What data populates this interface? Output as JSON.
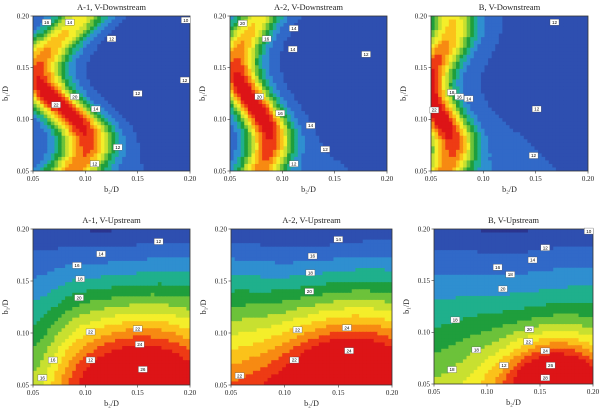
{
  "chart_data": [
    {
      "type": "heatmap",
      "title": "A-1, V-Downstream",
      "xlabel": "b₂/D",
      "ylabel": "b₁/D",
      "xlim": [
        0.05,
        0.2
      ],
      "ylim": [
        0.05,
        0.2
      ],
      "xticks": [
        "0.05",
        "0.10",
        "0.15",
        "0.20"
      ],
      "yticks": [
        "0.05",
        "0.10",
        "0.15",
        "0.20"
      ],
      "model": {
        "base": 0.12,
        "ridge_amp": 0.86,
        "ridge_width": 0.018,
        "ridge_x0": 0.078,
        "ridge_wave": [
          0.024,
          0.14,
          0.035
        ],
        "bottom_boost": 0.12
      },
      "contour_labels": [
        {
          "text": "16",
          "x": 0.063,
          "y": 0.194
        },
        {
          "text": "14",
          "x": 0.085,
          "y": 0.194
        },
        {
          "text": "12",
          "x": 0.125,
          "y": 0.178
        },
        {
          "text": "10",
          "x": 0.196,
          "y": 0.196
        },
        {
          "text": "12",
          "x": 0.195,
          "y": 0.138
        },
        {
          "text": "22",
          "x": 0.072,
          "y": 0.114
        },
        {
          "text": "20",
          "x": 0.09,
          "y": 0.122
        },
        {
          "text": "14",
          "x": 0.11,
          "y": 0.11
        },
        {
          "text": "12",
          "x": 0.15,
          "y": 0.125
        },
        {
          "text": "12",
          "x": 0.131,
          "y": 0.073
        },
        {
          "text": "12",
          "x": 0.109,
          "y": 0.057
        }
      ]
    },
    {
      "type": "heatmap",
      "title": "A-2, V-Downstream",
      "xlabel": "b₂/D",
      "ylabel": "b₁/D",
      "xlim": [
        0.05,
        0.2
      ],
      "ylim": [
        0.05,
        0.2
      ],
      "xticks": [
        "0.05",
        "0.10",
        "0.15",
        "0.20"
      ],
      "yticks": [
        "0.05",
        "0.10",
        "0.15",
        "0.20"
      ],
      "model": {
        "base": 0.13,
        "ridge_amp": 0.88,
        "ridge_width": 0.015,
        "ridge_x0": 0.072,
        "ridge_wave": [
          0.016,
          0.15,
          0.03
        ],
        "bottom_boost": 0.1
      },
      "contour_labels": [
        {
          "text": "20",
          "x": 0.062,
          "y": 0.193
        },
        {
          "text": "14",
          "x": 0.111,
          "y": 0.188
        },
        {
          "text": "16",
          "x": 0.085,
          "y": 0.178
        },
        {
          "text": "14",
          "x": 0.11,
          "y": 0.168
        },
        {
          "text": "12",
          "x": 0.18,
          "y": 0.163
        },
        {
          "text": "20",
          "x": 0.078,
          "y": 0.122
        },
        {
          "text": "16",
          "x": 0.098,
          "y": 0.106
        },
        {
          "text": "14",
          "x": 0.127,
          "y": 0.094
        },
        {
          "text": "12",
          "x": 0.141,
          "y": 0.071
        },
        {
          "text": "12",
          "x": 0.111,
          "y": 0.057
        }
      ]
    },
    {
      "type": "heatmap",
      "title": "B, V-Downstream",
      "xlabel": "b₂/D",
      "ylabel": "b₁/D",
      "xlim": [
        0.05,
        0.2
      ],
      "ylim": [
        0.05,
        0.2
      ],
      "xticks": [
        "0.05",
        "0.10",
        "0.15",
        "0.20"
      ],
      "yticks": [
        "0.05",
        "0.10",
        "0.15",
        "0.20"
      ],
      "model": {
        "base": 0.14,
        "ridge_amp": 0.88,
        "ridge_width": 0.016,
        "ridge_x0": 0.058,
        "ridge_wave": [
          0.012,
          0.12,
          0.03
        ],
        "bottom_boost": 0.08
      },
      "contour_labels": [
        {
          "text": "12",
          "x": 0.168,
          "y": 0.194
        },
        {
          "text": "18",
          "x": 0.07,
          "y": 0.126
        },
        {
          "text": "16",
          "x": 0.077,
          "y": 0.122
        },
        {
          "text": "14",
          "x": 0.086,
          "y": 0.12
        },
        {
          "text": "22",
          "x": 0.053,
          "y": 0.109
        },
        {
          "text": "12",
          "x": 0.151,
          "y": 0.11
        },
        {
          "text": "12",
          "x": 0.148,
          "y": 0.065
        }
      ]
    },
    {
      "type": "heatmap",
      "title": "A-1, V-Upstream",
      "xlabel": "b₂/D",
      "ylabel": "b₁/D",
      "xlim": [
        0.05,
        0.2
      ],
      "ylim": [
        0.05,
        0.2
      ],
      "xticks": [
        "0.05",
        "0.10",
        "0.15",
        "0.20"
      ],
      "yticks": [
        "0.05",
        "0.10",
        "0.15",
        "0.20"
      ],
      "model": {
        "grad_y": 0.9,
        "hot_x": 0.15,
        "hot_y": 0.06,
        "hot_amp": 0.42,
        "hot_w": 0.05,
        "left_dip": 0.25
      },
      "contour_labels": [
        {
          "text": "12",
          "x": 0.17,
          "y": 0.188
        },
        {
          "text": "14",
          "x": 0.115,
          "y": 0.176
        },
        {
          "text": "16",
          "x": 0.092,
          "y": 0.165
        },
        {
          "text": "18",
          "x": 0.095,
          "y": 0.152
        },
        {
          "text": "20",
          "x": 0.094,
          "y": 0.134
        },
        {
          "text": "22",
          "x": 0.105,
          "y": 0.101
        },
        {
          "text": "22",
          "x": 0.15,
          "y": 0.104
        },
        {
          "text": "24",
          "x": 0.152,
          "y": 0.089
        },
        {
          "text": "12",
          "x": 0.105,
          "y": 0.074
        },
        {
          "text": "26",
          "x": 0.155,
          "y": 0.065
        },
        {
          "text": "16",
          "x": 0.069,
          "y": 0.074
        },
        {
          "text": "16",
          "x": 0.059,
          "y": 0.057
        }
      ]
    },
    {
      "type": "heatmap",
      "title": "A-2, V-Upstream",
      "xlabel": "b₂/D",
      "ylabel": "b₁/D",
      "xlim": [
        0.05,
        0.2
      ],
      "ylim": [
        0.05,
        0.2
      ],
      "xticks": [
        "0.05",
        "0.10",
        "0.15",
        "0.20"
      ],
      "yticks": [
        "0.05",
        "0.10",
        "0.15",
        "0.20"
      ],
      "model": {
        "grad_y": 0.85,
        "hot_x": 0.16,
        "hot_y": 0.055,
        "hot_amp": 0.55,
        "hot_w": 0.055,
        "left_dip": -0.05
      },
      "contour_labels": [
        {
          "text": "14",
          "x": 0.15,
          "y": 0.19
        },
        {
          "text": "16",
          "x": 0.126,
          "y": 0.174
        },
        {
          "text": "18",
          "x": 0.124,
          "y": 0.158
        },
        {
          "text": "20",
          "x": 0.123,
          "y": 0.14
        },
        {
          "text": "22",
          "x": 0.112,
          "y": 0.103
        },
        {
          "text": "24",
          "x": 0.158,
          "y": 0.105
        },
        {
          "text": "22",
          "x": 0.109,
          "y": 0.074
        },
        {
          "text": "24",
          "x": 0.16,
          "y": 0.083
        },
        {
          "text": "22",
          "x": 0.058,
          "y": 0.059
        }
      ]
    },
    {
      "type": "heatmap",
      "title": "B, V-Upstream",
      "xlabel": "b₂/D",
      "ylabel": "b₁/D",
      "xlim": [
        0.05,
        0.2
      ],
      "ylim": [
        0.05,
        0.2
      ],
      "xticks": [
        "0.05",
        "0.10",
        "0.15",
        "0.20"
      ],
      "yticks": [
        "0.05",
        "0.10",
        "0.15",
        "0.20"
      ],
      "model": {
        "grad_y": 0.75,
        "hot_x": 0.165,
        "hot_y": 0.05,
        "hot_amp": 0.6,
        "hot_w": 0.035,
        "left_dip": 0.1
      },
      "contour_labels": [
        {
          "text": "10",
          "x": 0.196,
          "y": 0.198
        },
        {
          "text": "12",
          "x": 0.155,
          "y": 0.182
        },
        {
          "text": "14",
          "x": 0.143,
          "y": 0.17
        },
        {
          "text": "16",
          "x": 0.11,
          "y": 0.163
        },
        {
          "text": "18",
          "x": 0.122,
          "y": 0.156
        },
        {
          "text": "20",
          "x": 0.115,
          "y": 0.142
        },
        {
          "text": "18",
          "x": 0.07,
          "y": 0.112
        },
        {
          "text": "20",
          "x": 0.14,
          "y": 0.103
        },
        {
          "text": "22",
          "x": 0.139,
          "y": 0.091
        },
        {
          "text": "18",
          "x": 0.09,
          "y": 0.083
        },
        {
          "text": "24",
          "x": 0.155,
          "y": 0.082
        },
        {
          "text": "26",
          "x": 0.16,
          "y": 0.068
        },
        {
          "text": "12",
          "x": 0.116,
          "y": 0.068
        },
        {
          "text": "28",
          "x": 0.155,
          "y": 0.056
        },
        {
          "text": "18",
          "x": 0.067,
          "y": 0.064
        }
      ]
    }
  ],
  "colormap": [
    "#2b3590",
    "#2e4fb0",
    "#3169c8",
    "#2f8fd0",
    "#1fb08c",
    "#1f9e3c",
    "#6cc23a",
    "#c8e030",
    "#f4ee2a",
    "#fbc21a",
    "#f78a12",
    "#ee3b14",
    "#dd1417"
  ]
}
